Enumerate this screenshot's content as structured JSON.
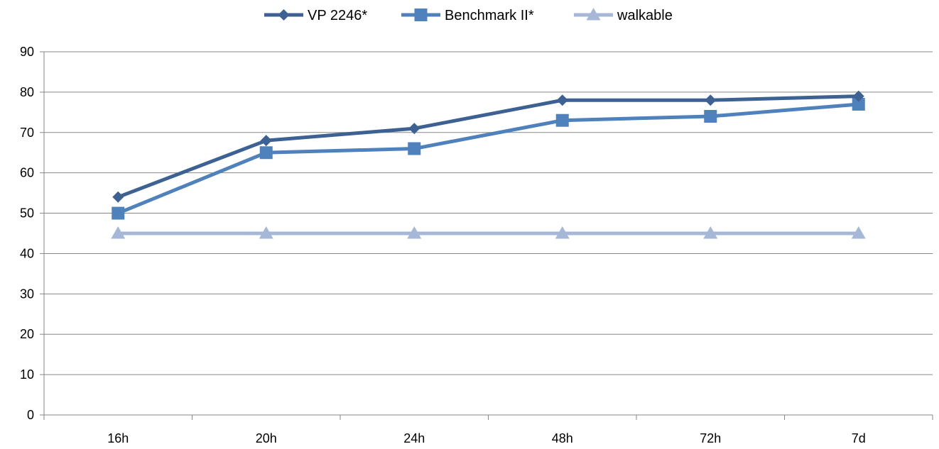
{
  "chart_data": {
    "type": "line",
    "title": "",
    "xlabel": "",
    "ylabel": "",
    "categories": [
      "16h",
      "20h",
      "24h",
      "48h",
      "72h",
      "7d"
    ],
    "ylim": [
      0,
      90
    ],
    "yticks": [
      0,
      10,
      20,
      30,
      40,
      50,
      60,
      70,
      80,
      90
    ],
    "grid": "horizontal",
    "legend_position": "top-center",
    "series": [
      {
        "name": "VP 2246*",
        "values": [
          54,
          68,
          71,
          78,
          78,
          79
        ],
        "color": "#3D6193",
        "marker": "diamond"
      },
      {
        "name": "Benchmark II*",
        "values": [
          50,
          65,
          66,
          73,
          74,
          77
        ],
        "color": "#4F81BD",
        "marker": "square"
      },
      {
        "name": "walkable",
        "values": [
          45,
          45,
          45,
          45,
          45,
          45
        ],
        "color": "#A6B7D8",
        "marker": "triangle"
      }
    ]
  }
}
